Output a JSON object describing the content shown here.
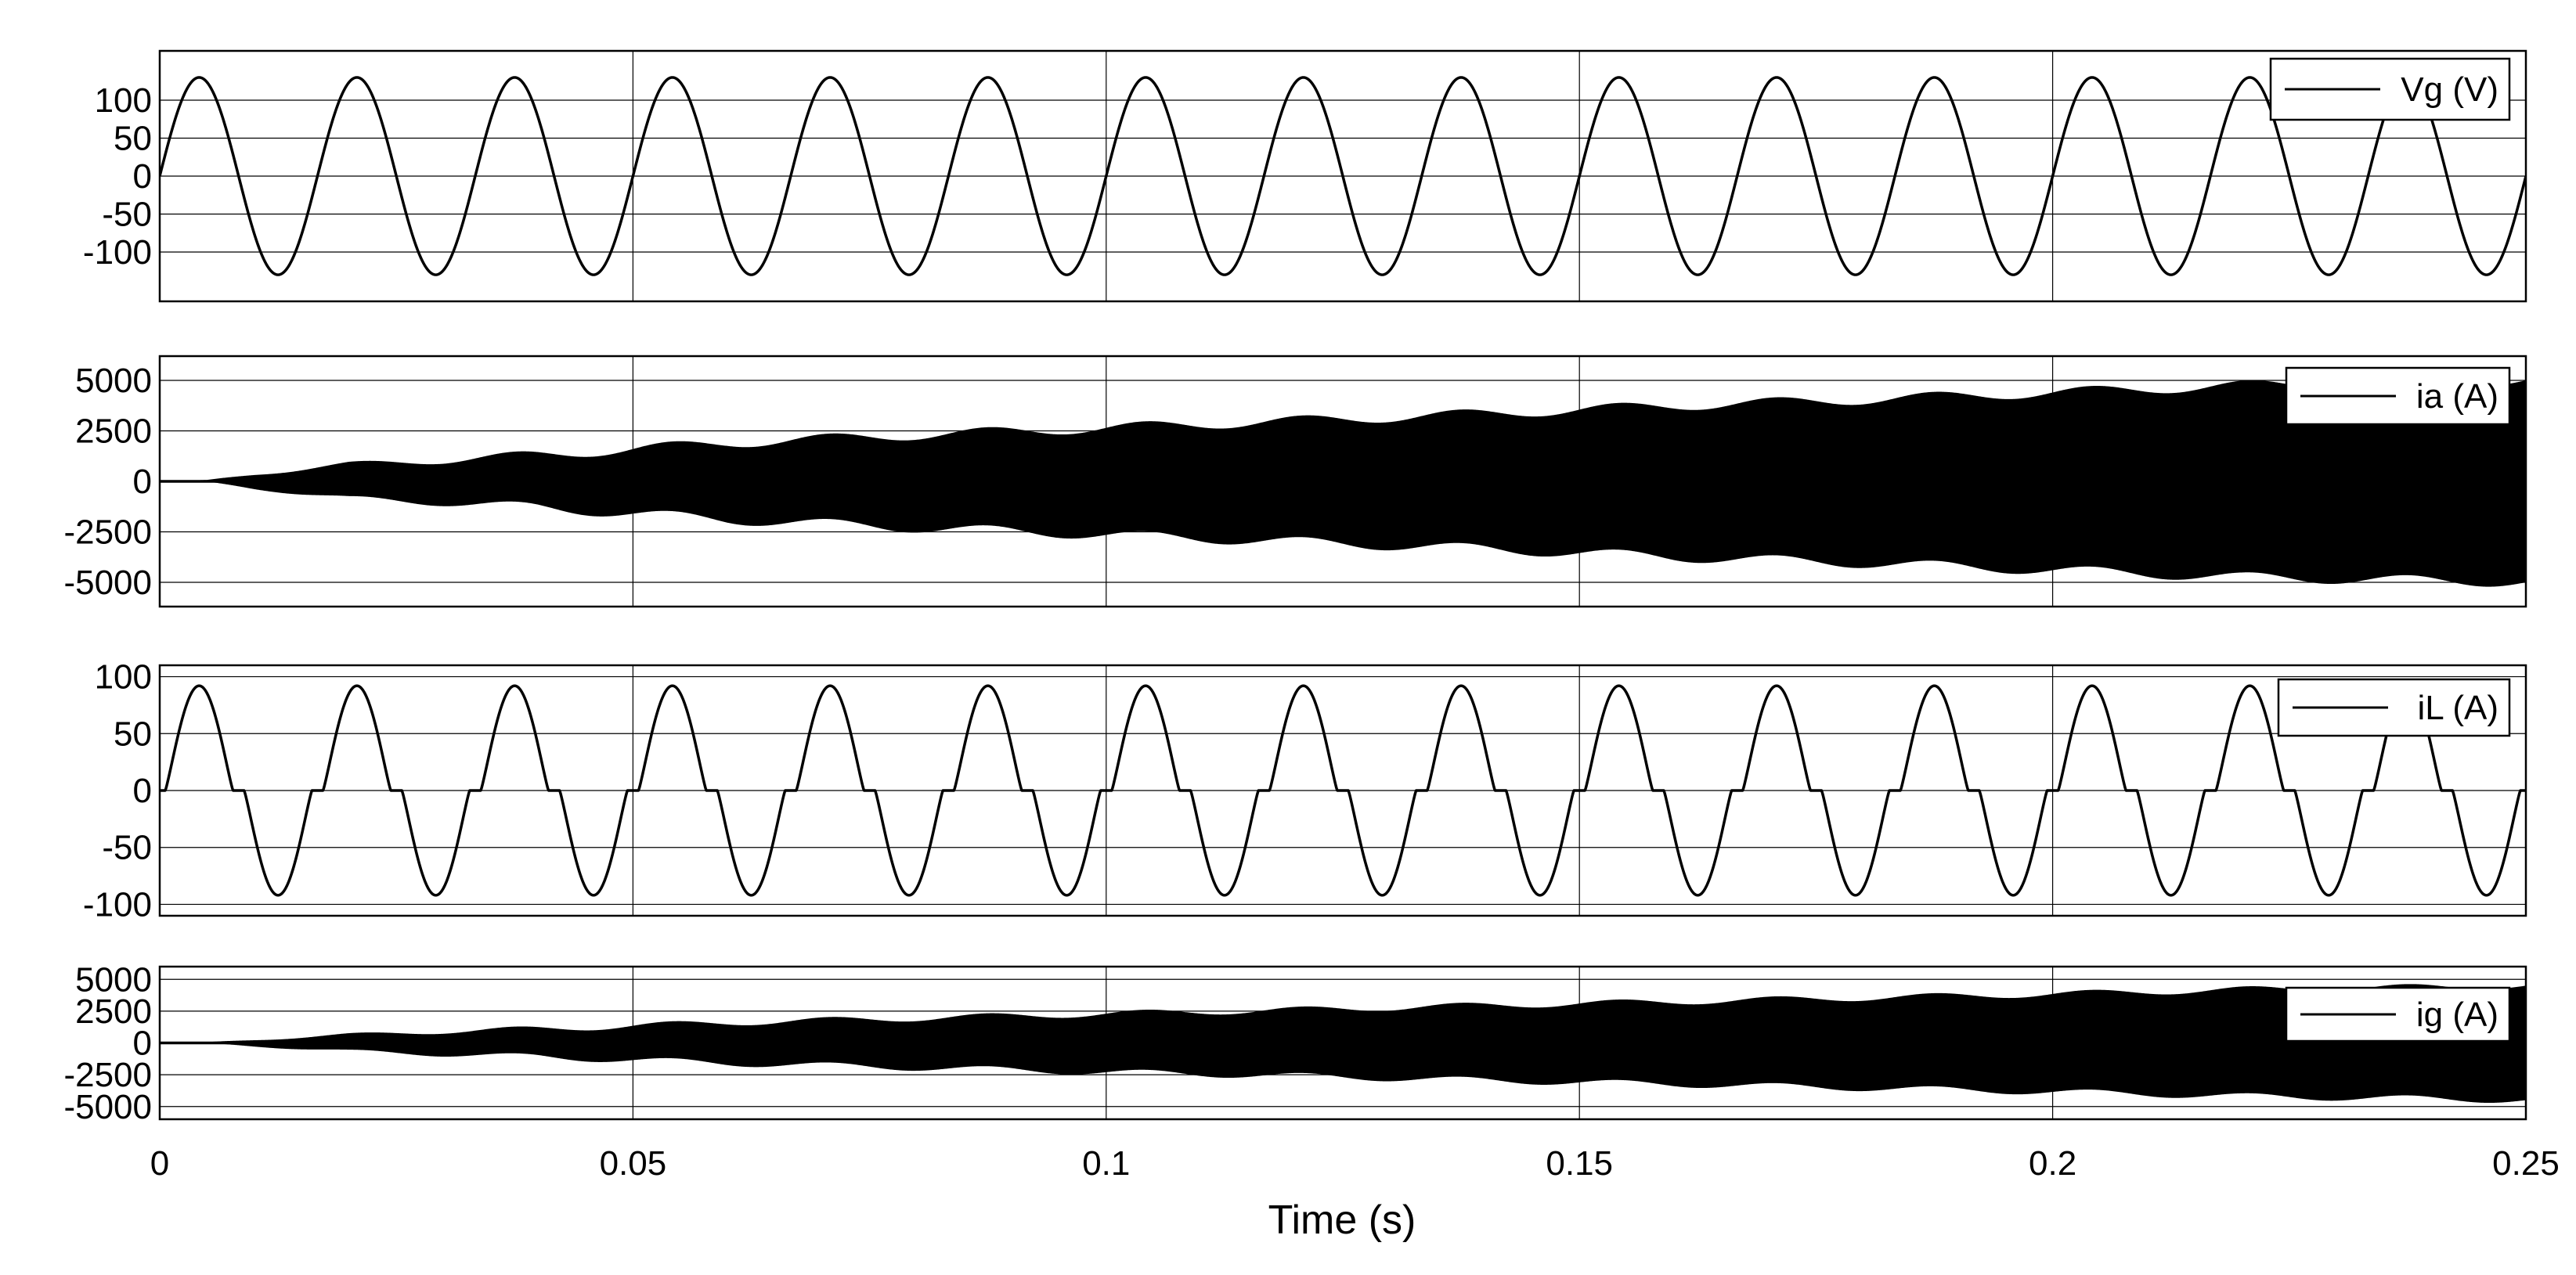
{
  "chart_data": {
    "type": "line",
    "xlabel": "Time (s)",
    "xlim": [
      0,
      0.25
    ],
    "xticks": [
      0,
      0.05,
      0.1,
      0.15,
      0.2,
      0.25
    ],
    "xtick_labels": [
      "0",
      "0.05",
      "0.1",
      "0.15",
      "0.2",
      "0.25"
    ],
    "grid": true,
    "legend_position": "top-right",
    "line_color": "#000000",
    "subplots": [
      {
        "id": "vg",
        "legend": "Vg (V)",
        "kind": "sine",
        "ylim": [
          -165,
          165
        ],
        "yticks": [
          -100,
          -50,
          0,
          50,
          100
        ],
        "ytick_labels": [
          "-100",
          "-50",
          "0",
          "50",
          "100"
        ],
        "amplitude": 130,
        "frequency_hz": 60,
        "series": [
          {
            "name": "Vg (V)"
          }
        ]
      },
      {
        "id": "ia",
        "legend": "ia (A)",
        "kind": "oscillating-envelope",
        "ylim": [
          -6200,
          6200
        ],
        "yticks": [
          -5000,
          -2500,
          0,
          2500,
          5000
        ],
        "ytick_labels": [
          "-5000",
          "-2500",
          "0",
          "2500",
          "5000"
        ],
        "envelope_time": [
          0,
          0.005,
          0.01,
          0.02,
          0.03,
          0.04,
          0.05,
          0.06,
          0.08,
          0.1,
          0.12,
          0.14,
          0.16,
          0.18,
          0.2,
          0.22,
          0.25
        ],
        "envelope_amplitude": [
          0,
          40,
          350,
          850,
          1050,
          1300,
          1600,
          1900,
          2300,
          2650,
          3000,
          3350,
          3750,
          4050,
          4400,
          4750,
          5000
        ],
        "envelope_ripple": 250,
        "series": [
          {
            "name": "ia (A)"
          }
        ]
      },
      {
        "id": "il",
        "legend": "iL (A)",
        "kind": "dead-zone-sine",
        "ylim": [
          -110,
          110
        ],
        "yticks": [
          -100,
          -50,
          0,
          50,
          100
        ],
        "ytick_labels": [
          "-100",
          "-50",
          "0",
          "50",
          "100"
        ],
        "amplitude": 92,
        "frequency_hz": 60,
        "series": [
          {
            "name": "iL (A)"
          }
        ]
      },
      {
        "id": "ig",
        "legend": "ig (A)",
        "kind": "oscillating-envelope",
        "ylim": [
          -6000,
          6000
        ],
        "yticks": [
          -5000,
          -2500,
          0,
          2500,
          5000
        ],
        "ytick_labels": [
          "-5000",
          "-2500",
          "0",
          "2500",
          "5000"
        ],
        "envelope_time": [
          0,
          0.005,
          0.01,
          0.02,
          0.03,
          0.04,
          0.05,
          0.06,
          0.08,
          0.1,
          0.12,
          0.14,
          0.16,
          0.18,
          0.2,
          0.22,
          0.25
        ],
        "envelope_amplitude": [
          0,
          40,
          250,
          650,
          900,
          1100,
          1350,
          1600,
          1950,
          2300,
          2600,
          2950,
          3250,
          3550,
          3850,
          4200,
          4500
        ],
        "envelope_ripple": 250,
        "series": [
          {
            "name": "ig (A)"
          }
        ]
      }
    ]
  }
}
